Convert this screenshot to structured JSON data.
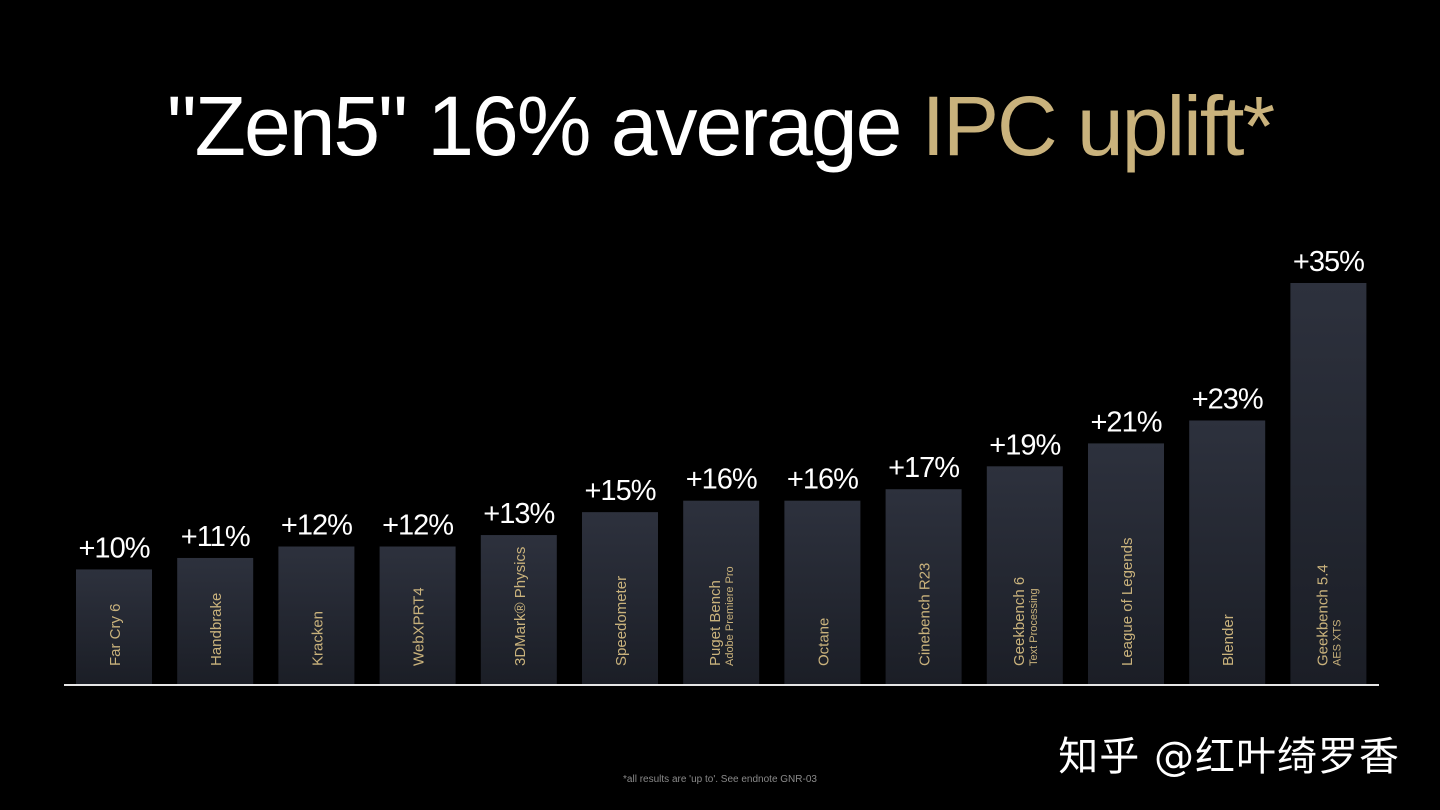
{
  "title": {
    "main": "\"Zen5\" 16% average ",
    "accent": "IPC uplift*"
  },
  "footnote": "*all results are 'up to'. See endnote GNR-03",
  "watermark": "知乎 @红叶绮罗香",
  "colors": {
    "background": "#000000",
    "accent": "#c9b27c",
    "bar_top": "#2d313d",
    "bar_bottom": "#1b1e26",
    "label": "#c9b27c",
    "baseline": "#e6e6e6"
  },
  "chart_data": {
    "type": "bar",
    "categories": [
      [
        "Far Cry 6"
      ],
      [
        "Handbrake"
      ],
      [
        "Kracken"
      ],
      [
        "WebXPRT4"
      ],
      [
        "3DMark® Physics"
      ],
      [
        "Speedometer"
      ],
      [
        "Puget Bench",
        "Adobe Premiere Pro"
      ],
      [
        "Octane"
      ],
      [
        "Cinebench R23"
      ],
      [
        "Geekbench 6",
        "Text Processing"
      ],
      [
        "League of Legends"
      ],
      [
        "Blender"
      ],
      [
        "Geekbench 5.4",
        "AES XTS"
      ]
    ],
    "values": [
      10,
      11,
      12,
      12,
      13,
      15,
      16,
      16,
      17,
      19,
      21,
      23,
      35
    ],
    "value_labels": [
      "+10%",
      "+11%",
      "+12%",
      "+12%",
      "+13%",
      "+15%",
      "+16%",
      "+16%",
      "+17%",
      "+19%",
      "+21%",
      "+23%",
      "+35%"
    ],
    "ylim": [
      0,
      35
    ],
    "grid": false,
    "legend": "none"
  }
}
